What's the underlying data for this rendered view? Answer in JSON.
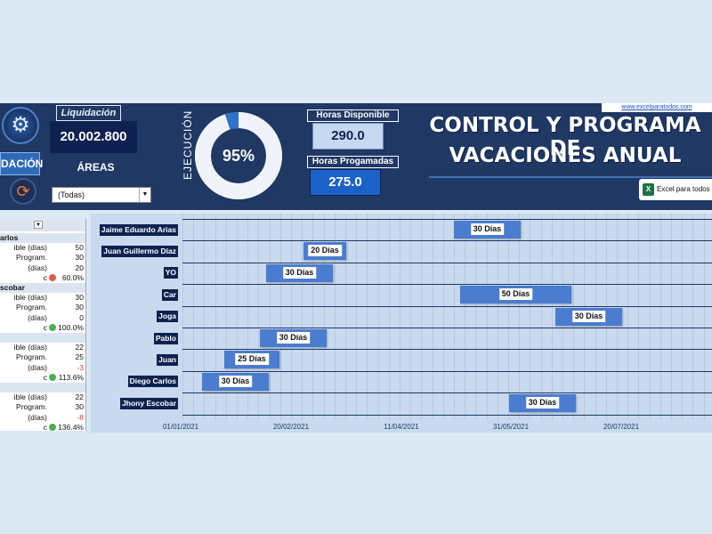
{
  "header": {
    "liquidacion_label": "Liquidación",
    "liquidacion_value": "20.002.800",
    "dacion_button_label": "DACIÓN",
    "areas_label": "ÁREAS",
    "areas_selected": "(Todas)",
    "ejecucion_label": "EJECUCIÓN",
    "ejecucion_percent": "95%",
    "ejecucion_fraction": 0.95,
    "horas_disponible_label": "Horas Disponible",
    "horas_disponible_value": "290.0",
    "horas_programadas_label": "Horas Progamadas",
    "horas_programadas_value": "275.0",
    "title_line1": "CONTROL Y PROGRAMA DE",
    "title_line2": "VACACIONES ANUAL",
    "site_link": "www.excelparatodos.com",
    "excel_badge": "Excel para todos"
  },
  "summary": {
    "groups": [
      {
        "name": "arlos",
        "rows": [
          {
            "label": "ible (días)",
            "value": "50"
          },
          {
            "label": "Program.",
            "value": "30"
          },
          {
            "label": "(días)",
            "value": "20"
          },
          {
            "label": "c",
            "value": "60.0%",
            "status": "red"
          }
        ]
      },
      {
        "name": "scobar",
        "rows": [
          {
            "label": "ible (días)",
            "value": "30"
          },
          {
            "label": "Program.",
            "value": "30"
          },
          {
            "label": "(días)",
            "value": "0"
          },
          {
            "label": "c",
            "value": "100.0%",
            "status": "green"
          }
        ]
      },
      {
        "name": "",
        "rows": [
          {
            "label": "ible (días)",
            "value": "22"
          },
          {
            "label": "Program.",
            "value": "25"
          },
          {
            "label": "(días)",
            "value": "-3",
            "negative": true
          },
          {
            "label": "c",
            "value": "113.6%",
            "status": "green"
          }
        ]
      },
      {
        "name": "",
        "rows": [
          {
            "label": "ible (días)",
            "value": "22"
          },
          {
            "label": "Program.",
            "value": "30"
          },
          {
            "label": "(días)",
            "value": "-8",
            "negative": true
          },
          {
            "label": "c",
            "value": "136.4%",
            "status": "green"
          }
        ]
      }
    ]
  },
  "gantt": {
    "axis_labels": [
      "01/01/2021",
      "20/02/2021",
      "11/04/2021",
      "31/05/2021",
      "20/07/2021"
    ],
    "rows": [
      {
        "name": "Jaime Eduardo Arias",
        "label": "30 Días"
      },
      {
        "name": "Juan Guillermo Díaz",
        "label": "20 Días"
      },
      {
        "name": "YO",
        "label": "30 Días"
      },
      {
        "name": "Car",
        "label": "50 Días"
      },
      {
        "name": "Joga",
        "label": "30 Días"
      },
      {
        "name": "Pablo",
        "label": "30 Días"
      },
      {
        "name": "Juan",
        "label": "25 Días"
      },
      {
        "name": "Diego Carlos",
        "label": "30 Días"
      },
      {
        "name": "Jhony Escobar",
        "label": "30 Días"
      }
    ]
  },
  "colors": {
    "header_bg": "#1f3864",
    "accent_blue": "#4a7ccf",
    "status_red": "#e05a4e",
    "status_green": "#4caf50",
    "negative_text": "#e03a2e"
  }
}
